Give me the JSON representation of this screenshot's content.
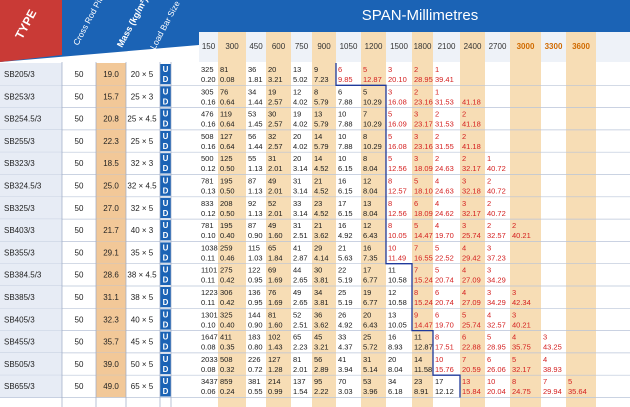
{
  "header": {
    "type_label": "TYPE",
    "pitch_label": "Cross Rod Pitch(mm)",
    "mass_label": "Mass (kg/m²)",
    "bar_label": "Load Bar Size (mm)",
    "span_title": "SPAN-Millimetres"
  },
  "spans": [
    "150",
    "300",
    "450",
    "600",
    "750",
    "900",
    "1050",
    "1200",
    "1500",
    "1800",
    "2100",
    "2400",
    "2700",
    "3000",
    "3300",
    "3600"
  ],
  "row_labels": {
    "u": "U",
    "d": "D"
  },
  "colors": {
    "header_blue": "#1b63b5",
    "type_red": "#c93a36",
    "mass_shade": "#f2c898",
    "band_orange": "#f7ddb5",
    "red_text": "#d41f1f",
    "blue_line": "#1f3a9c"
  },
  "products": [
    {
      "type": "SB205/3",
      "pitch": "50",
      "mass": "19.0",
      "bar": "20 × 5",
      "u": [
        "325",
        "81",
        "36",
        "20",
        "13",
        "9",
        "6",
        "5",
        "3",
        "2",
        "1"
      ],
      "d": [
        "0.20",
        "0.08",
        "1.81",
        "3.21",
        "5.02",
        "7.23",
        "9.85",
        "12.87",
        "20.10",
        "28.95",
        "39.41"
      ]
    },
    {
      "type": "SB253/3",
      "pitch": "50",
      "mass": "15.7",
      "bar": "25 × 3",
      "u": [
        "305",
        "76",
        "34",
        "19",
        "12",
        "8",
        "6",
        "5",
        "3",
        "2",
        "1"
      ],
      "d": [
        "0.16",
        "0.64",
        "1.44",
        "2.57",
        "4.02",
        "5.79",
        "7.88",
        "10.29",
        "16.08",
        "23.16",
        "31.53",
        "41.18"
      ]
    },
    {
      "type": "SB254.5/3",
      "pitch": "50",
      "mass": "20.8",
      "bar": "25 × 4.5",
      "u": [
        "476",
        "119",
        "53",
        "30",
        "19",
        "13",
        "10",
        "7",
        "5",
        "3",
        "2",
        "2"
      ],
      "d": [
        "0.16",
        "0.64",
        "1.45",
        "2.57",
        "4.02",
        "5.79",
        "7.88",
        "10.29",
        "16.09",
        "23.17",
        "31.53",
        "41.18"
      ]
    },
    {
      "type": "SB255/3",
      "pitch": "50",
      "mass": "22.3",
      "bar": "25 × 5",
      "u": [
        "508",
        "127",
        "56",
        "32",
        "20",
        "14",
        "10",
        "8",
        "5",
        "3",
        "2",
        "2"
      ],
      "d": [
        "0.16",
        "0.64",
        "1.44",
        "2.57",
        "4.02",
        "5.79",
        "7.88",
        "10.29",
        "16.08",
        "23.16",
        "31.55",
        "41.18"
      ]
    },
    {
      "type": "SB323/3",
      "pitch": "50",
      "mass": "18.5",
      "bar": "32 × 3",
      "u": [
        "500",
        "125",
        "55",
        "31",
        "20",
        "14",
        "10",
        "8",
        "5",
        "3",
        "2",
        "2",
        "1"
      ],
      "d": [
        "0.12",
        "0.50",
        "1.13",
        "2.01",
        "3.14",
        "4.52",
        "6.15",
        "8.04",
        "12.56",
        "18.09",
        "24.63",
        "32.17",
        "40.72"
      ]
    },
    {
      "type": "SB324.5/3",
      "pitch": "50",
      "mass": "25.0",
      "bar": "32 × 4.5",
      "u": [
        "781",
        "195",
        "87",
        "49",
        "31",
        "21",
        "16",
        "12",
        "8",
        "5",
        "4",
        "3",
        "2"
      ],
      "d": [
        "0.13",
        "0.50",
        "1.13",
        "2.01",
        "3.14",
        "4.52",
        "6.15",
        "8.04",
        "12.57",
        "18.10",
        "24.63",
        "32.18",
        "40.72"
      ]
    },
    {
      "type": "SB325/3",
      "pitch": "50",
      "mass": "27.0",
      "bar": "32 × 5",
      "u": [
        "833",
        "208",
        "92",
        "52",
        "33",
        "23",
        "17",
        "13",
        "8",
        "6",
        "4",
        "3",
        "2"
      ],
      "d": [
        "0.12",
        "0.50",
        "1.13",
        "2.01",
        "3.14",
        "4.52",
        "6.15",
        "8.04",
        "12.56",
        "18.09",
        "24.62",
        "32.17",
        "40.72"
      ]
    },
    {
      "type": "SB403/3",
      "pitch": "50",
      "mass": "21.7",
      "bar": "40 × 3",
      "u": [
        "781",
        "195",
        "87",
        "49",
        "31",
        "21",
        "16",
        "12",
        "8",
        "5",
        "4",
        "3",
        "2",
        "2"
      ],
      "d": [
        "0.10",
        "0.40",
        "0.90",
        "1.60",
        "2.51",
        "3.62",
        "4.92",
        "6.43",
        "10.05",
        "14.47",
        "19.70",
        "25.74",
        "32.57",
        "40.21"
      ]
    },
    {
      "type": "SB355/3",
      "pitch": "50",
      "mass": "29.1",
      "bar": "35 × 5",
      "u": [
        "1038",
        "259",
        "115",
        "65",
        "41",
        "29",
        "21",
        "16",
        "10",
        "7",
        "5",
        "4",
        "3"
      ],
      "d": [
        "0.11",
        "0.46",
        "1.03",
        "1.84",
        "2.87",
        "4.14",
        "5.63",
        "7.35",
        "11.49",
        "16.55",
        "22.52",
        "29.42",
        "37.23"
      ]
    },
    {
      "type": "SB384.5/3",
      "pitch": "50",
      "mass": "28.6",
      "bar": "38 × 4.5",
      "u": [
        "1101",
        "275",
        "122",
        "69",
        "44",
        "30",
        "22",
        "17",
        "11",
        "7",
        "5",
        "4",
        "3"
      ],
      "d": [
        "0.11",
        "0.42",
        "0.95",
        "1.69",
        "2.65",
        "3.81",
        "5.19",
        "6.77",
        "10.58",
        "15.24",
        "20.74",
        "27.09",
        "34.29"
      ]
    },
    {
      "type": "SB385/3",
      "pitch": "50",
      "mass": "31.1",
      "bar": "38 × 5",
      "u": [
        "1223",
        "306",
        "136",
        "76",
        "49",
        "34",
        "25",
        "19",
        "12",
        "8",
        "6",
        "4",
        "3",
        "3"
      ],
      "d": [
        "0.11",
        "0.42",
        "0.95",
        "1.69",
        "2.65",
        "3.81",
        "5.19",
        "6.77",
        "10.58",
        "15.24",
        "20.74",
        "27.09",
        "34.29",
        "42.34"
      ]
    },
    {
      "type": "SB405/3",
      "pitch": "50",
      "mass": "32.3",
      "bar": "40 × 5",
      "u": [
        "1301",
        "325",
        "144",
        "81",
        "52",
        "36",
        "26",
        "20",
        "13",
        "9",
        "6",
        "5",
        "4",
        "3"
      ],
      "d": [
        "0.10",
        "0.40",
        "0.90",
        "1.60",
        "2.51",
        "3.62",
        "4.92",
        "6.43",
        "10.05",
        "14.47",
        "19.70",
        "25.74",
        "32.57",
        "40.21"
      ]
    },
    {
      "type": "SB455/3",
      "pitch": "50",
      "mass": "35.7",
      "bar": "45 × 5",
      "u": [
        "1647",
        "411",
        "183",
        "102",
        "65",
        "45",
        "33",
        "25",
        "16",
        "11",
        "8",
        "6",
        "5",
        "4",
        "3"
      ],
      "d": [
        "0.08",
        "0.35",
        "0.80",
        "1.43",
        "2.23",
        "3.21",
        "4.37",
        "5.72",
        "8.93",
        "12.87",
        "17.51",
        "22.88",
        "28.95",
        "35.75",
        "43.25"
      ]
    },
    {
      "type": "SB505/3",
      "pitch": "50",
      "mass": "39.0",
      "bar": "50 × 5",
      "u": [
        "2033",
        "508",
        "226",
        "127",
        "81",
        "56",
        "41",
        "31",
        "20",
        "14",
        "10",
        "7",
        "6",
        "5",
        "4"
      ],
      "d": [
        "0.08",
        "0.32",
        "0.72",
        "1.28",
        "2.01",
        "2.89",
        "3.94",
        "5.14",
        "8.04",
        "11.58",
        "15.76",
        "20.59",
        "26.06",
        "32.17",
        "38.93"
      ]
    },
    {
      "type": "SB655/3",
      "pitch": "50",
      "mass": "49.0",
      "bar": "65 × 5",
      "u": [
        "3437",
        "859",
        "381",
        "214",
        "137",
        "95",
        "70",
        "53",
        "34",
        "23",
        "17",
        "13",
        "10",
        "8",
        "7",
        "5"
      ],
      "d": [
        "0.06",
        "0.24",
        "0.55",
        "0.99",
        "1.54",
        "2.22",
        "3.03",
        "3.96",
        "6.18",
        "8.91",
        "12.12",
        "15.84",
        "20.04",
        "24.75",
        "29.94",
        "35.64"
      ]
    }
  ]
}
